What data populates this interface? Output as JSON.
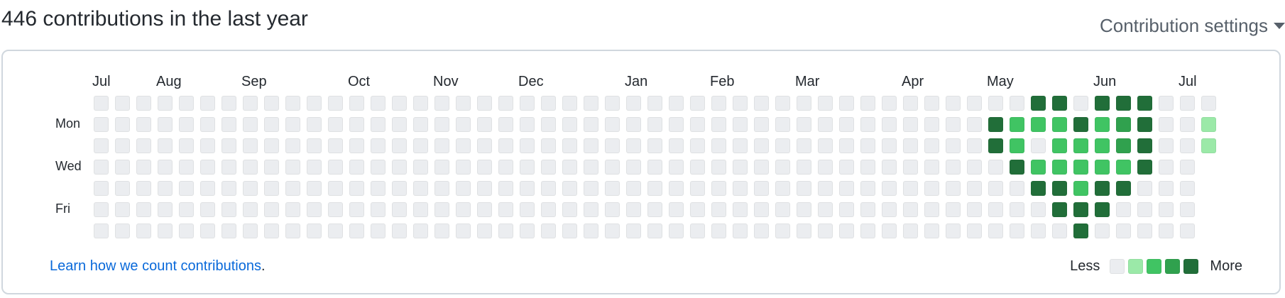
{
  "header": {
    "title": "446 contributions in the last year",
    "settings_label": "Contribution settings"
  },
  "calendar": {
    "months": [
      {
        "label": "Jul",
        "week": 0
      },
      {
        "label": "Aug",
        "week": 3
      },
      {
        "label": "Sep",
        "week": 7
      },
      {
        "label": "Oct",
        "week": 12
      },
      {
        "label": "Nov",
        "week": 16
      },
      {
        "label": "Dec",
        "week": 20
      },
      {
        "label": "Jan",
        "week": 25
      },
      {
        "label": "Feb",
        "week": 29
      },
      {
        "label": "Mar",
        "week": 33
      },
      {
        "label": "Apr",
        "week": 38
      },
      {
        "label": "May",
        "week": 42
      },
      {
        "label": "Jun",
        "week": 47
      },
      {
        "label": "Jul",
        "week": 51
      }
    ],
    "day_labels": [
      {
        "label": "Mon",
        "day": 1
      },
      {
        "label": "Wed",
        "day": 3
      },
      {
        "label": "Fri",
        "day": 5
      }
    ],
    "weeks": 53,
    "last_week_days": 3,
    "levels": {
      "42": [
        0,
        4,
        4,
        0,
        0,
        0,
        0
      ],
      "43": [
        0,
        2,
        2,
        4,
        0,
        0,
        0
      ],
      "44": [
        4,
        2,
        0,
        2,
        4,
        0,
        0
      ],
      "45": [
        4,
        2,
        2,
        2,
        4,
        4,
        0
      ],
      "46": [
        0,
        4,
        2,
        2,
        2,
        4,
        4
      ],
      "47": [
        4,
        2,
        2,
        2,
        4,
        4,
        0
      ],
      "48": [
        4,
        3,
        3,
        2,
        4,
        0,
        0
      ],
      "49": [
        4,
        4,
        4,
        4,
        0,
        0,
        0
      ],
      "52": [
        0,
        1,
        1,
        0,
        0,
        0,
        0
      ]
    }
  },
  "colors": {
    "level0": "#ebedf0",
    "level1": "#9be9a8",
    "level2": "#40c463",
    "level3": "#30a14e",
    "level4": "#216e39"
  },
  "footer": {
    "link": "Learn how we count contributions",
    "link_suffix": ".",
    "legend_less": "Less",
    "legend_more": "More"
  }
}
